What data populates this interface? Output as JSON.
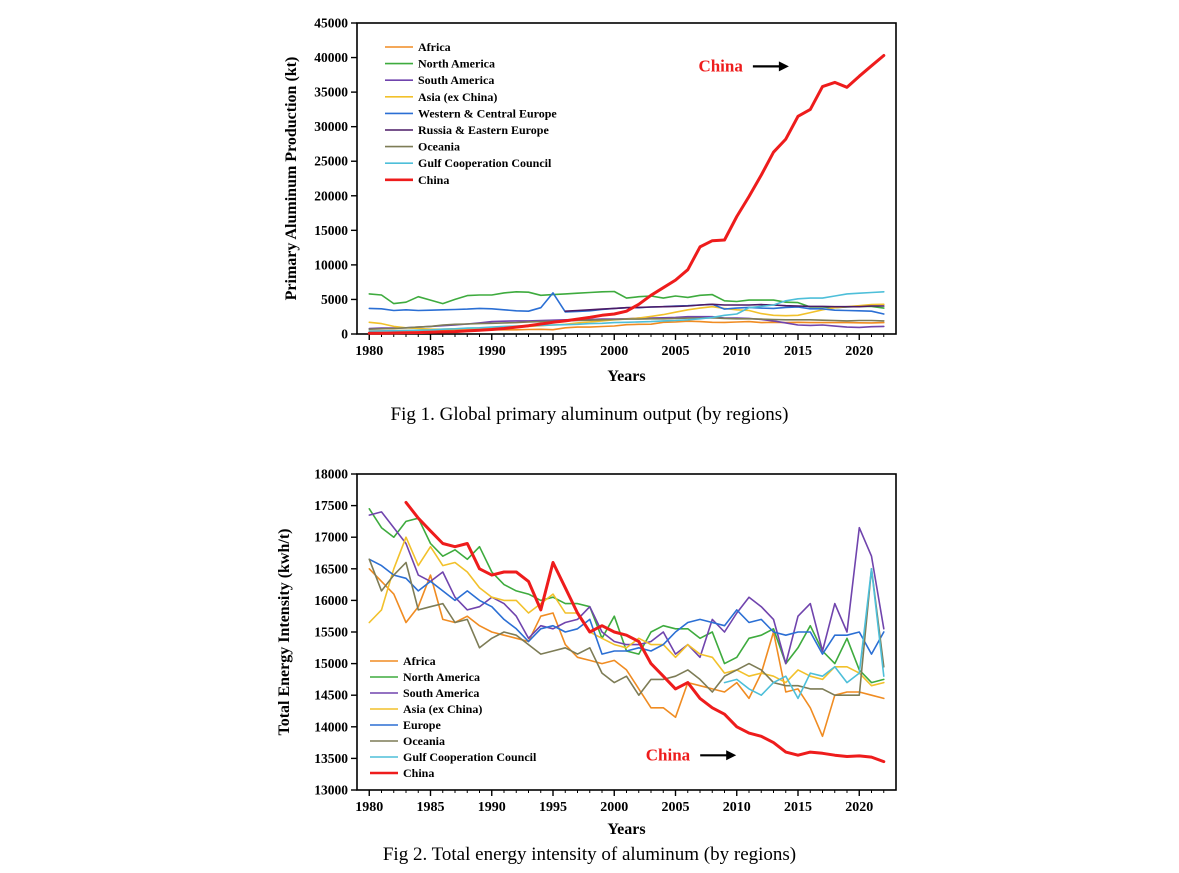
{
  "chart_data": [
    {
      "type": "line",
      "title": "",
      "caption": "Fig 1. Global primary aluminum output (by regions)",
      "xlabel": "Years",
      "ylabel": "Primary Aluminum Production (kt)",
      "xlim": [
        1979,
        2023
      ],
      "ylim": [
        0,
        45000
      ],
      "xticks": [
        1980,
        1985,
        1990,
        1995,
        2000,
        2005,
        2010,
        2015,
        2020
      ],
      "yticks": [
        0,
        5000,
        10000,
        15000,
        20000,
        25000,
        30000,
        35000,
        40000,
        45000
      ],
      "legend_position": "top-left",
      "annotation": {
        "text": "China",
        "color": "#ee1c1c",
        "x": 2010.5,
        "y": 38000
      },
      "x": [
        1980,
        1981,
        1982,
        1983,
        1984,
        1985,
        1986,
        1987,
        1988,
        1989,
        1990,
        1991,
        1992,
        1993,
        1994,
        1995,
        1996,
        1997,
        1998,
        1999,
        2000,
        2001,
        2002,
        2003,
        2004,
        2005,
        2006,
        2007,
        2008,
        2009,
        2010,
        2011,
        2012,
        2013,
        2014,
        2015,
        2016,
        2017,
        2018,
        2019,
        2020,
        2021,
        2022
      ],
      "series": [
        {
          "name": "Africa",
          "color": "#f08c22",
          "width": 1.6,
          "values": [
            430,
            450,
            490,
            520,
            530,
            560,
            560,
            580,
            600,
            600,
            610,
            610,
            610,
            650,
            680,
            620,
            890,
            1000,
            1000,
            1090,
            1160,
            1340,
            1400,
            1420,
            1700,
            1750,
            1850,
            1800,
            1700,
            1680,
            1740,
            1800,
            1650,
            1700,
            1650,
            1700,
            1650,
            1650,
            1650,
            1650,
            1620,
            1600,
            1650
          ]
        },
        {
          "name": "North America",
          "color": "#3eab3e",
          "width": 1.6,
          "values": [
            5800,
            5650,
            4400,
            4600,
            5400,
            4900,
            4400,
            5000,
            5550,
            5650,
            5650,
            5950,
            6100,
            6050,
            5600,
            5700,
            5800,
            5900,
            6000,
            6100,
            6150,
            5200,
            5400,
            5500,
            5200,
            5500,
            5300,
            5600,
            5700,
            4800,
            4700,
            4900,
            4900,
            4900,
            4600,
            4550,
            3900,
            3900,
            3800,
            3900,
            4000,
            4000,
            3750
          ]
        },
        {
          "name": "South America",
          "color": "#7044ad",
          "width": 1.6,
          "values": [
            800,
            850,
            850,
            900,
            1000,
            1100,
            1200,
            1300,
            1450,
            1600,
            1800,
            1850,
            1900,
            1900,
            1950,
            2000,
            2050,
            2100,
            2100,
            2150,
            2150,
            2200,
            2300,
            2300,
            2350,
            2400,
            2500,
            2500,
            2500,
            2300,
            2300,
            2250,
            2100,
            1900,
            1600,
            1300,
            1250,
            1300,
            1150,
            1000,
            950,
            1050,
            1100
          ]
        },
        {
          "name": "Asia (ex China)",
          "color": "#f2c12b",
          "width": 1.6,
          "values": [
            1700,
            1500,
            1100,
            900,
            800,
            700,
            700,
            750,
            800,
            850,
            900,
            950,
            1000,
            1100,
            1200,
            1300,
            1400,
            1600,
            1750,
            1900,
            2050,
            2150,
            2300,
            2550,
            2800,
            3150,
            3500,
            3750,
            3950,
            3700,
            3500,
            3400,
            2950,
            2700,
            2650,
            2700,
            3100,
            3500,
            3800,
            3950,
            4100,
            4250,
            4300
          ]
        },
        {
          "name": "Western & Central Europe",
          "color": "#2b6fd4",
          "width": 1.6,
          "values": [
            3700,
            3650,
            3400,
            3500,
            3400,
            3450,
            3500,
            3550,
            3600,
            3700,
            3650,
            3500,
            3350,
            3300,
            3800,
            5950,
            3200,
            3250,
            3350,
            3550,
            3700,
            3800,
            3800,
            3900,
            3950,
            4050,
            4100,
            4200,
            4300,
            3600,
            3750,
            3850,
            3750,
            3700,
            3850,
            3900,
            3650,
            3650,
            3450,
            3400,
            3350,
            3300,
            2900
          ]
        },
        {
          "name": "Russia & Eastern Europe",
          "color": "#4c1a66",
          "width": 1.6,
          "values": [
            null,
            null,
            null,
            null,
            null,
            null,
            null,
            null,
            null,
            null,
            null,
            null,
            null,
            null,
            null,
            null,
            3300,
            3400,
            3500,
            3600,
            3700,
            3800,
            3850,
            3900,
            3950,
            4000,
            4050,
            4200,
            4300,
            4200,
            4200,
            4200,
            4250,
            4200,
            4100,
            4050,
            4000,
            4000,
            3950,
            3950,
            3950,
            4050,
            4050
          ]
        },
        {
          "name": "Oceania",
          "color": "#7d7c56",
          "width": 1.6,
          "values": [
            700,
            750,
            800,
            900,
            1000,
            1100,
            1300,
            1400,
            1450,
            1500,
            1550,
            1600,
            1650,
            1750,
            1800,
            1850,
            1900,
            1950,
            2000,
            2050,
            2100,
            2150,
            2150,
            2200,
            2200,
            2250,
            2300,
            2300,
            2350,
            2250,
            2200,
            2200,
            2150,
            2100,
            2050,
            2050,
            2050,
            2000,
            1950,
            1900,
            1950,
            1950,
            1900
          ]
        },
        {
          "name": "Gulf Cooperation Council",
          "color": "#4ebfd9",
          "width": 1.6,
          "values": [
            400,
            450,
            480,
            500,
            550,
            600,
            700,
            750,
            850,
            900,
            1000,
            1100,
            1150,
            1200,
            1250,
            1300,
            1350,
            1400,
            1500,
            1550,
            1650,
            1700,
            1750,
            1800,
            1900,
            1950,
            2050,
            2200,
            2400,
            2700,
            2900,
            3800,
            4000,
            4200,
            4800,
            5100,
            5200,
            5200,
            5500,
            5800,
            5900,
            6000,
            6100
          ]
        },
        {
          "name": "China",
          "color": "#ee1c1c",
          "width": 3,
          "values": [
            100,
            120,
            150,
            170,
            200,
            250,
            300,
            350,
            450,
            550,
            650,
            800,
            1000,
            1200,
            1450,
            1700,
            1900,
            2150,
            2400,
            2700,
            2900,
            3300,
            4300,
            5600,
            6700,
            7800,
            9300,
            12600,
            13500,
            13600,
            17000,
            19900,
            23000,
            26300,
            28200,
            31500,
            32500,
            35800,
            36400,
            35700,
            37300,
            38800,
            40300
          ]
        }
      ]
    },
    {
      "type": "line",
      "title": "",
      "caption": "Fig 2.  Total energy intensity of aluminum (by regions)",
      "xlabel": "Years",
      "ylabel": "Total Energy Intensity (kwh/t)",
      "xlim": [
        1979,
        2023
      ],
      "ylim": [
        13000,
        18000
      ],
      "xticks": [
        1980,
        1985,
        1990,
        1995,
        2000,
        2005,
        2010,
        2015,
        2020
      ],
      "yticks": [
        13000,
        13500,
        14000,
        14500,
        15000,
        15500,
        16000,
        16500,
        17000,
        17500,
        18000
      ],
      "legend_position": "bottom-left",
      "annotation": {
        "text": "China",
        "color": "#ee1c1c",
        "x": 2006.2,
        "y": 13470
      },
      "x": [
        1980,
        1981,
        1982,
        1983,
        1984,
        1985,
        1986,
        1987,
        1988,
        1989,
        1990,
        1991,
        1992,
        1993,
        1994,
        1995,
        1996,
        1997,
        1998,
        1999,
        2000,
        2001,
        2002,
        2003,
        2004,
        2005,
        2006,
        2007,
        2008,
        2009,
        2010,
        2011,
        2012,
        2013,
        2014,
        2015,
        2016,
        2017,
        2018,
        2019,
        2020,
        2021,
        2022
      ],
      "series": [
        {
          "name": "Africa",
          "color": "#f08c22",
          "width": 1.6,
          "values": [
            16500,
            16300,
            16100,
            15650,
            15900,
            16400,
            15700,
            15650,
            15750,
            15600,
            15500,
            15450,
            15400,
            15350,
            15750,
            15800,
            15300,
            15100,
            15050,
            15000,
            15050,
            14900,
            14600,
            14300,
            14300,
            14150,
            14700,
            14650,
            14600,
            14550,
            14700,
            14450,
            14850,
            15500,
            14550,
            14600,
            14300,
            13850,
            14500,
            14550,
            14550,
            14500,
            14450
          ]
        },
        {
          "name": "North America",
          "color": "#3eab3e",
          "width": 1.6,
          "values": [
            17450,
            17150,
            17000,
            17250,
            17300,
            16900,
            16700,
            16800,
            16650,
            16850,
            16450,
            16250,
            16150,
            16100,
            16000,
            16050,
            15950,
            15950,
            15900,
            15400,
            15750,
            15200,
            15150,
            15500,
            15600,
            15550,
            15550,
            15400,
            15500,
            15000,
            15100,
            15400,
            15450,
            15550,
            15000,
            15250,
            15600,
            15200,
            15000,
            15400,
            14900,
            14700,
            14750
          ]
        },
        {
          "name": "South America",
          "color": "#7044ad",
          "width": 1.6,
          "values": [
            17350,
            17400,
            17150,
            16900,
            16400,
            16300,
            16450,
            16050,
            15850,
            15900,
            16050,
            15950,
            15750,
            15400,
            15600,
            15550,
            15650,
            15700,
            15900,
            15500,
            15350,
            15300,
            15300,
            15350,
            15500,
            15150,
            15300,
            15100,
            15700,
            15500,
            15800,
            16050,
            15900,
            15700,
            15000,
            15750,
            15950,
            15200,
            15950,
            15500,
            17150,
            16700,
            15550
          ]
        },
        {
          "name": "Asia (ex China)",
          "color": "#f2c12b",
          "width": 1.6,
          "values": [
            15650,
            15850,
            16500,
            17000,
            16550,
            16850,
            16550,
            16600,
            16450,
            16200,
            16050,
            16000,
            16000,
            15800,
            15950,
            16100,
            15800,
            15800,
            15500,
            15400,
            15300,
            15250,
            15400,
            15300,
            15300,
            15100,
            15300,
            15150,
            15100,
            14850,
            14900,
            14800,
            14850,
            14800,
            14700,
            14900,
            14800,
            14750,
            14950,
            14950,
            14850,
            14650,
            14700
          ]
        },
        {
          "name": "Europe",
          "color": "#2b6fd4",
          "width": 1.6,
          "values": [
            16650,
            16550,
            16400,
            16350,
            16150,
            16300,
            16150,
            16000,
            16150,
            16000,
            15900,
            15700,
            15550,
            15350,
            15550,
            15600,
            15500,
            15550,
            15700,
            15150,
            15200,
            15200,
            15250,
            15200,
            15300,
            15500,
            15650,
            15700,
            15650,
            15600,
            15850,
            15650,
            15700,
            15500,
            15450,
            15500,
            15500,
            15150,
            15450,
            15450,
            15500,
            15150,
            15500
          ]
        },
        {
          "name": "Oceania",
          "color": "#7d7c56",
          "width": 1.6,
          "values": [
            16650,
            16150,
            16400,
            16600,
            15850,
            15900,
            15950,
            15650,
            15700,
            15250,
            15400,
            15500,
            15450,
            15300,
            15150,
            15200,
            15250,
            15150,
            15250,
            14850,
            14700,
            14800,
            14500,
            14750,
            14750,
            14800,
            14900,
            14750,
            14550,
            14800,
            14900,
            15000,
            14900,
            14700,
            14650,
            14650,
            14600,
            14600,
            14500,
            14500,
            14500,
            16500,
            14950
          ]
        },
        {
          "name": "Gulf Cooperation Council",
          "color": "#4ebfd9",
          "width": 1.6,
          "values": [
            null,
            null,
            null,
            null,
            null,
            null,
            null,
            null,
            null,
            null,
            null,
            null,
            null,
            null,
            null,
            null,
            null,
            null,
            null,
            null,
            null,
            null,
            null,
            null,
            null,
            null,
            null,
            null,
            null,
            14700,
            14750,
            14600,
            14500,
            14700,
            14800,
            14450,
            14850,
            14800,
            14950,
            14700,
            14850,
            16500,
            14800
          ]
        },
        {
          "name": "China",
          "color": "#ee1c1c",
          "width": 3,
          "values": [
            null,
            null,
            null,
            17550,
            17300,
            17100,
            16900,
            16850,
            16900,
            16500,
            16400,
            16450,
            16450,
            16300,
            15850,
            16600,
            16200,
            15800,
            15500,
            15600,
            15500,
            15450,
            15350,
            15000,
            14800,
            14600,
            14700,
            14450,
            14300,
            14200,
            14000,
            13900,
            13850,
            13750,
            13600,
            13550,
            13600,
            13580,
            13550,
            13530,
            13540,
            13520,
            13450
          ]
        }
      ]
    }
  ]
}
